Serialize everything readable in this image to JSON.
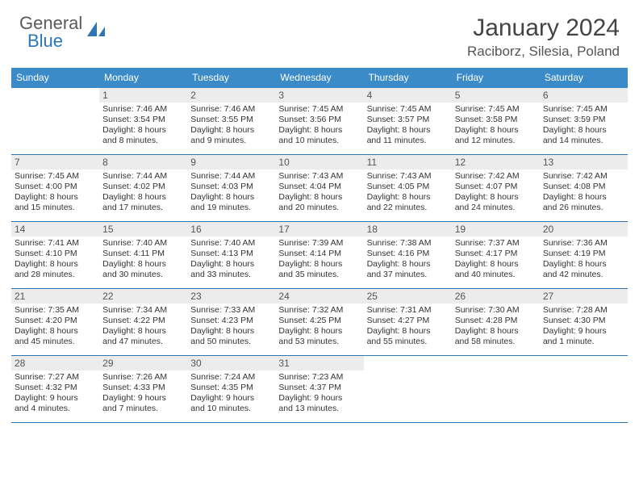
{
  "logo": {
    "text1": "General",
    "text2": "Blue"
  },
  "colors": {
    "header_blue": "#3b8bc9",
    "accent_blue": "#2e75b6",
    "gray_bar": "#ececec",
    "text_dark": "#333333",
    "text_mid": "#555555",
    "bg": "#ffffff"
  },
  "title": "January 2024",
  "location": "Raciborz, Silesia, Poland",
  "dow": [
    "Sunday",
    "Monday",
    "Tuesday",
    "Wednesday",
    "Thursday",
    "Friday",
    "Saturday"
  ],
  "weeks": [
    [
      {
        "n": "",
        "sr": "",
        "ss": "",
        "d1": "",
        "d2": ""
      },
      {
        "n": "1",
        "sr": "Sunrise: 7:46 AM",
        "ss": "Sunset: 3:54 PM",
        "d1": "Daylight: 8 hours",
        "d2": "and 8 minutes."
      },
      {
        "n": "2",
        "sr": "Sunrise: 7:46 AM",
        "ss": "Sunset: 3:55 PM",
        "d1": "Daylight: 8 hours",
        "d2": "and 9 minutes."
      },
      {
        "n": "3",
        "sr": "Sunrise: 7:45 AM",
        "ss": "Sunset: 3:56 PM",
        "d1": "Daylight: 8 hours",
        "d2": "and 10 minutes."
      },
      {
        "n": "4",
        "sr": "Sunrise: 7:45 AM",
        "ss": "Sunset: 3:57 PM",
        "d1": "Daylight: 8 hours",
        "d2": "and 11 minutes."
      },
      {
        "n": "5",
        "sr": "Sunrise: 7:45 AM",
        "ss": "Sunset: 3:58 PM",
        "d1": "Daylight: 8 hours",
        "d2": "and 12 minutes."
      },
      {
        "n": "6",
        "sr": "Sunrise: 7:45 AM",
        "ss": "Sunset: 3:59 PM",
        "d1": "Daylight: 8 hours",
        "d2": "and 14 minutes."
      }
    ],
    [
      {
        "n": "7",
        "sr": "Sunrise: 7:45 AM",
        "ss": "Sunset: 4:00 PM",
        "d1": "Daylight: 8 hours",
        "d2": "and 15 minutes."
      },
      {
        "n": "8",
        "sr": "Sunrise: 7:44 AM",
        "ss": "Sunset: 4:02 PM",
        "d1": "Daylight: 8 hours",
        "d2": "and 17 minutes."
      },
      {
        "n": "9",
        "sr": "Sunrise: 7:44 AM",
        "ss": "Sunset: 4:03 PM",
        "d1": "Daylight: 8 hours",
        "d2": "and 19 minutes."
      },
      {
        "n": "10",
        "sr": "Sunrise: 7:43 AM",
        "ss": "Sunset: 4:04 PM",
        "d1": "Daylight: 8 hours",
        "d2": "and 20 minutes."
      },
      {
        "n": "11",
        "sr": "Sunrise: 7:43 AM",
        "ss": "Sunset: 4:05 PM",
        "d1": "Daylight: 8 hours",
        "d2": "and 22 minutes."
      },
      {
        "n": "12",
        "sr": "Sunrise: 7:42 AM",
        "ss": "Sunset: 4:07 PM",
        "d1": "Daylight: 8 hours",
        "d2": "and 24 minutes."
      },
      {
        "n": "13",
        "sr": "Sunrise: 7:42 AM",
        "ss": "Sunset: 4:08 PM",
        "d1": "Daylight: 8 hours",
        "d2": "and 26 minutes."
      }
    ],
    [
      {
        "n": "14",
        "sr": "Sunrise: 7:41 AM",
        "ss": "Sunset: 4:10 PM",
        "d1": "Daylight: 8 hours",
        "d2": "and 28 minutes."
      },
      {
        "n": "15",
        "sr": "Sunrise: 7:40 AM",
        "ss": "Sunset: 4:11 PM",
        "d1": "Daylight: 8 hours",
        "d2": "and 30 minutes."
      },
      {
        "n": "16",
        "sr": "Sunrise: 7:40 AM",
        "ss": "Sunset: 4:13 PM",
        "d1": "Daylight: 8 hours",
        "d2": "and 33 minutes."
      },
      {
        "n": "17",
        "sr": "Sunrise: 7:39 AM",
        "ss": "Sunset: 4:14 PM",
        "d1": "Daylight: 8 hours",
        "d2": "and 35 minutes."
      },
      {
        "n": "18",
        "sr": "Sunrise: 7:38 AM",
        "ss": "Sunset: 4:16 PM",
        "d1": "Daylight: 8 hours",
        "d2": "and 37 minutes."
      },
      {
        "n": "19",
        "sr": "Sunrise: 7:37 AM",
        "ss": "Sunset: 4:17 PM",
        "d1": "Daylight: 8 hours",
        "d2": "and 40 minutes."
      },
      {
        "n": "20",
        "sr": "Sunrise: 7:36 AM",
        "ss": "Sunset: 4:19 PM",
        "d1": "Daylight: 8 hours",
        "d2": "and 42 minutes."
      }
    ],
    [
      {
        "n": "21",
        "sr": "Sunrise: 7:35 AM",
        "ss": "Sunset: 4:20 PM",
        "d1": "Daylight: 8 hours",
        "d2": "and 45 minutes."
      },
      {
        "n": "22",
        "sr": "Sunrise: 7:34 AM",
        "ss": "Sunset: 4:22 PM",
        "d1": "Daylight: 8 hours",
        "d2": "and 47 minutes."
      },
      {
        "n": "23",
        "sr": "Sunrise: 7:33 AM",
        "ss": "Sunset: 4:23 PM",
        "d1": "Daylight: 8 hours",
        "d2": "and 50 minutes."
      },
      {
        "n": "24",
        "sr": "Sunrise: 7:32 AM",
        "ss": "Sunset: 4:25 PM",
        "d1": "Daylight: 8 hours",
        "d2": "and 53 minutes."
      },
      {
        "n": "25",
        "sr": "Sunrise: 7:31 AM",
        "ss": "Sunset: 4:27 PM",
        "d1": "Daylight: 8 hours",
        "d2": "and 55 minutes."
      },
      {
        "n": "26",
        "sr": "Sunrise: 7:30 AM",
        "ss": "Sunset: 4:28 PM",
        "d1": "Daylight: 8 hours",
        "d2": "and 58 minutes."
      },
      {
        "n": "27",
        "sr": "Sunrise: 7:28 AM",
        "ss": "Sunset: 4:30 PM",
        "d1": "Daylight: 9 hours",
        "d2": "and 1 minute."
      }
    ],
    [
      {
        "n": "28",
        "sr": "Sunrise: 7:27 AM",
        "ss": "Sunset: 4:32 PM",
        "d1": "Daylight: 9 hours",
        "d2": "and 4 minutes."
      },
      {
        "n": "29",
        "sr": "Sunrise: 7:26 AM",
        "ss": "Sunset: 4:33 PM",
        "d1": "Daylight: 9 hours",
        "d2": "and 7 minutes."
      },
      {
        "n": "30",
        "sr": "Sunrise: 7:24 AM",
        "ss": "Sunset: 4:35 PM",
        "d1": "Daylight: 9 hours",
        "d2": "and 10 minutes."
      },
      {
        "n": "31",
        "sr": "Sunrise: 7:23 AM",
        "ss": "Sunset: 4:37 PM",
        "d1": "Daylight: 9 hours",
        "d2": "and 13 minutes."
      },
      {
        "n": "",
        "sr": "",
        "ss": "",
        "d1": "",
        "d2": ""
      },
      {
        "n": "",
        "sr": "",
        "ss": "",
        "d1": "",
        "d2": ""
      },
      {
        "n": "",
        "sr": "",
        "ss": "",
        "d1": "",
        "d2": ""
      }
    ]
  ]
}
